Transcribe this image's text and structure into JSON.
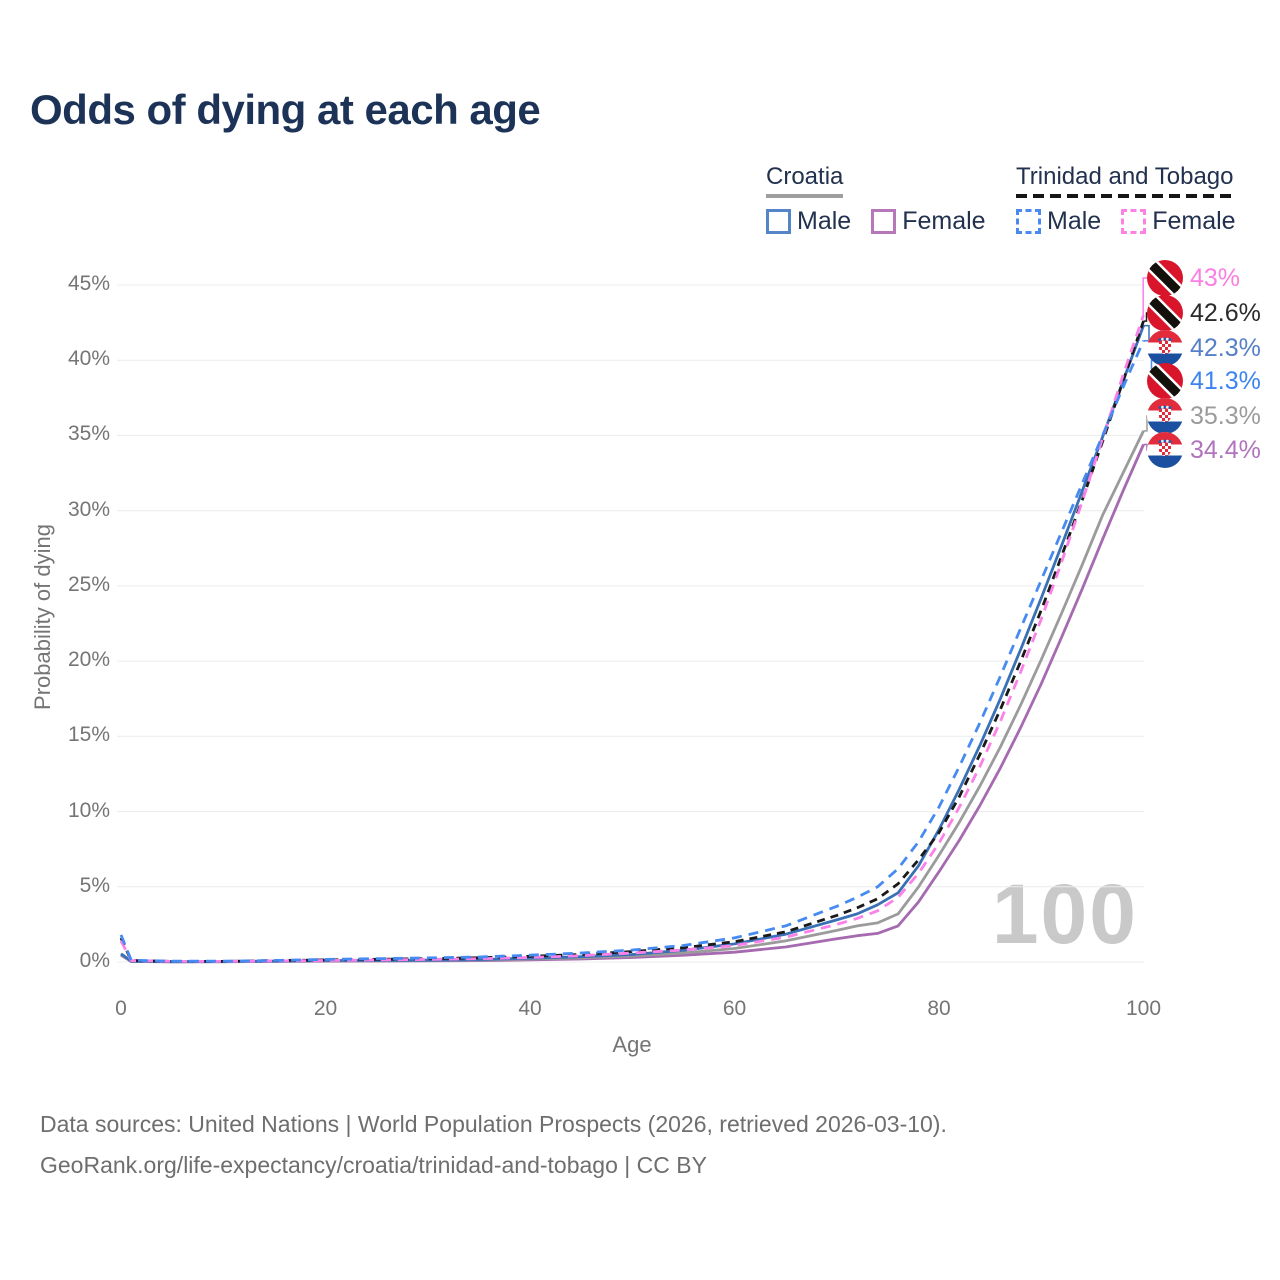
{
  "title": "Odds of dying at each age",
  "legend": {
    "groups": [
      {
        "title": "Croatia",
        "line_style": "solid",
        "underline_color": "#9e9e9e",
        "items": [
          {
            "label": "Male",
            "color": "#5585c8"
          },
          {
            "label": "Female",
            "color": "#b678b9"
          }
        ]
      },
      {
        "title": "Trinidad and Tobago",
        "line_style": "dashed",
        "underline_color": "#161616",
        "items": [
          {
            "label": "Male",
            "color": "#4a8af0"
          },
          {
            "label": "Female",
            "color": "#ff80e5"
          }
        ]
      }
    ]
  },
  "chart_data": {
    "type": "line",
    "title": "Odds of dying at each age",
    "xlabel": "Age",
    "ylabel": "Probability of dying",
    "xlim": [
      0,
      100
    ],
    "ylim_percent": [
      0,
      45
    ],
    "x_ticks": [
      0,
      20,
      40,
      60,
      80,
      100
    ],
    "y_ticks": [
      "0%",
      "5%",
      "10%",
      "15%",
      "20%",
      "25%",
      "30%",
      "35%",
      "40%",
      "45%"
    ],
    "grid": true,
    "legend_position": "top-right",
    "ages": [
      0,
      1,
      5,
      10,
      15,
      20,
      25,
      30,
      35,
      40,
      45,
      50,
      55,
      60,
      65,
      70,
      72,
      74,
      76,
      78,
      80,
      82,
      84,
      86,
      88,
      90,
      92,
      94,
      96,
      98,
      100
    ],
    "series": [
      {
        "id": "croatia-female",
        "name": "Croatia — Female",
        "country": "Croatia",
        "style": "solid",
        "color": "#a56ab0",
        "label_color": "#b173bd",
        "flag": "hr",
        "end_label": "34.4%",
        "values": [
          0.45,
          0.03,
          0.01,
          0.02,
          0.03,
          0.05,
          0.06,
          0.07,
          0.09,
          0.14,
          0.2,
          0.3,
          0.45,
          0.65,
          1.0,
          1.55,
          1.75,
          1.9,
          2.4,
          4.0,
          6.0,
          8.1,
          10.4,
          12.9,
          15.6,
          18.5,
          21.6,
          24.8,
          28.1,
          31.3,
          34.4
        ]
      },
      {
        "id": "croatia-all",
        "name": "Croatia",
        "country": "Croatia",
        "style": "solid",
        "color": "#9b9b9b",
        "label_color": "#9b9b9b",
        "flag": "hr",
        "end_label": "35.3%",
        "values": [
          0.5,
          0.04,
          0.02,
          0.02,
          0.05,
          0.08,
          0.08,
          0.1,
          0.13,
          0.2,
          0.28,
          0.4,
          0.6,
          0.9,
          1.4,
          2.1,
          2.4,
          2.6,
          3.2,
          5.0,
          7.1,
          9.3,
          11.7,
          14.3,
          17.1,
          20.1,
          23.2,
          26.4,
          29.7,
          32.5,
          35.3
        ]
      },
      {
        "id": "croatia-male",
        "name": "Croatia — Male",
        "country": "Croatia",
        "style": "solid",
        "color": "#3a70b5",
        "label_color": "#5480c8",
        "flag": "hr",
        "end_label": "42.3%",
        "values": [
          0.55,
          0.05,
          0.02,
          0.03,
          0.06,
          0.1,
          0.1,
          0.12,
          0.16,
          0.25,
          0.35,
          0.5,
          0.78,
          1.2,
          1.85,
          2.8,
          3.2,
          3.8,
          4.6,
          6.4,
          8.8,
          11.5,
          14.4,
          17.5,
          20.8,
          24.2,
          27.7,
          31.3,
          34.9,
          38.6,
          42.3
        ]
      },
      {
        "id": "trinidad-all",
        "name": "Trinidad and Tobago",
        "country": "Trinidad and Tobago",
        "style": "dashed",
        "dash": "8 6",
        "color": "#1a1a1a",
        "label_color": "#2b2b2b",
        "flag": "tt",
        "end_label": "42.6%",
        "values": [
          1.6,
          0.1,
          0.04,
          0.04,
          0.09,
          0.14,
          0.18,
          0.22,
          0.28,
          0.38,
          0.5,
          0.7,
          0.95,
          1.35,
          2.0,
          3.1,
          3.6,
          4.2,
          5.2,
          6.8,
          8.6,
          11.0,
          13.8,
          16.8,
          20.0,
          23.4,
          27.0,
          30.7,
          34.6,
          38.6,
          42.6
        ]
      },
      {
        "id": "trinidad-female",
        "name": "Trinidad and Tobago — Female",
        "country": "Trinidad and Tobago",
        "style": "dashed",
        "dash": "10 7",
        "color": "#fb80e8",
        "label_color": "#fb7ee3",
        "flag": "tt",
        "end_label": "43%",
        "values": [
          1.4,
          0.09,
          0.04,
          0.04,
          0.07,
          0.1,
          0.13,
          0.17,
          0.22,
          0.3,
          0.42,
          0.6,
          0.8,
          1.1,
          1.65,
          2.5,
          2.9,
          3.4,
          4.3,
          5.9,
          7.9,
          10.3,
          13.0,
          16.0,
          19.3,
          22.8,
          26.6,
          30.6,
          34.8,
          39.0,
          43.0
        ]
      },
      {
        "id": "trinidad-male",
        "name": "Trinidad and Tobago — Male",
        "country": "Trinidad and Tobago",
        "style": "dashed",
        "dash": "10 7",
        "color": "#468af2",
        "label_color": "#3c83f2",
        "flag": "tt",
        "end_label": "41.3%",
        "values": [
          1.8,
          0.12,
          0.05,
          0.05,
          0.1,
          0.17,
          0.22,
          0.27,
          0.33,
          0.45,
          0.6,
          0.8,
          1.1,
          1.6,
          2.4,
          3.7,
          4.3,
          5.0,
          6.2,
          8.0,
          10.3,
          13.0,
          15.9,
          19.0,
          22.2,
          25.4,
          28.6,
          31.8,
          35.0,
          38.2,
          41.3
        ]
      }
    ]
  },
  "watermark": {
    "value": "100"
  },
  "footer": {
    "line1": "Data sources: United Nations | World Population Prospects (2026, retrieved 2026-03-10).",
    "line2": "GeoRank.org/life-expectancy/croatia/trinidad-and-tobago | CC BY"
  }
}
